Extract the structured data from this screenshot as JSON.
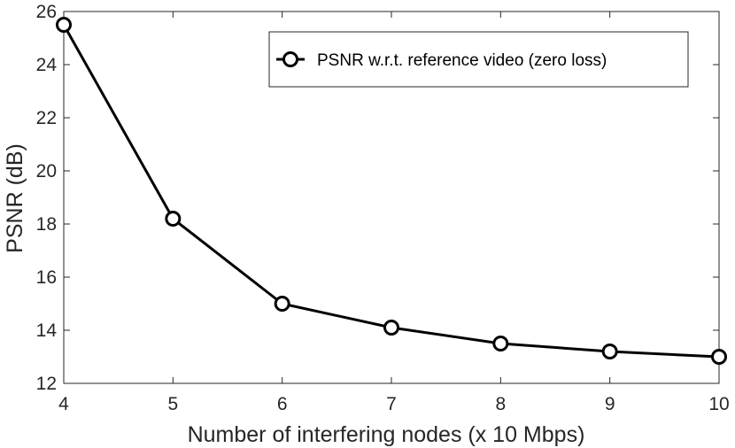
{
  "chart_data": {
    "type": "line",
    "xlabel": "Number of interfering nodes (x 10 Mbps)",
    "ylabel": "PSNR (dB)",
    "xlim": [
      4,
      10
    ],
    "ylim": [
      12,
      26
    ],
    "x_ticks": [
      4,
      5,
      6,
      7,
      8,
      9,
      10
    ],
    "y_ticks": [
      12,
      14,
      16,
      18,
      20,
      22,
      24,
      26
    ],
    "grid": false,
    "legend_position": "top-right",
    "series": [
      {
        "name": "PSNR w.r.t. reference video (zero loss)",
        "x": [
          4,
          5,
          6,
          7,
          8,
          9,
          10
        ],
        "y": [
          25.5,
          18.2,
          15.0,
          14.1,
          13.5,
          13.2,
          13.0
        ],
        "marker": "circle",
        "color": "#000000"
      }
    ]
  }
}
